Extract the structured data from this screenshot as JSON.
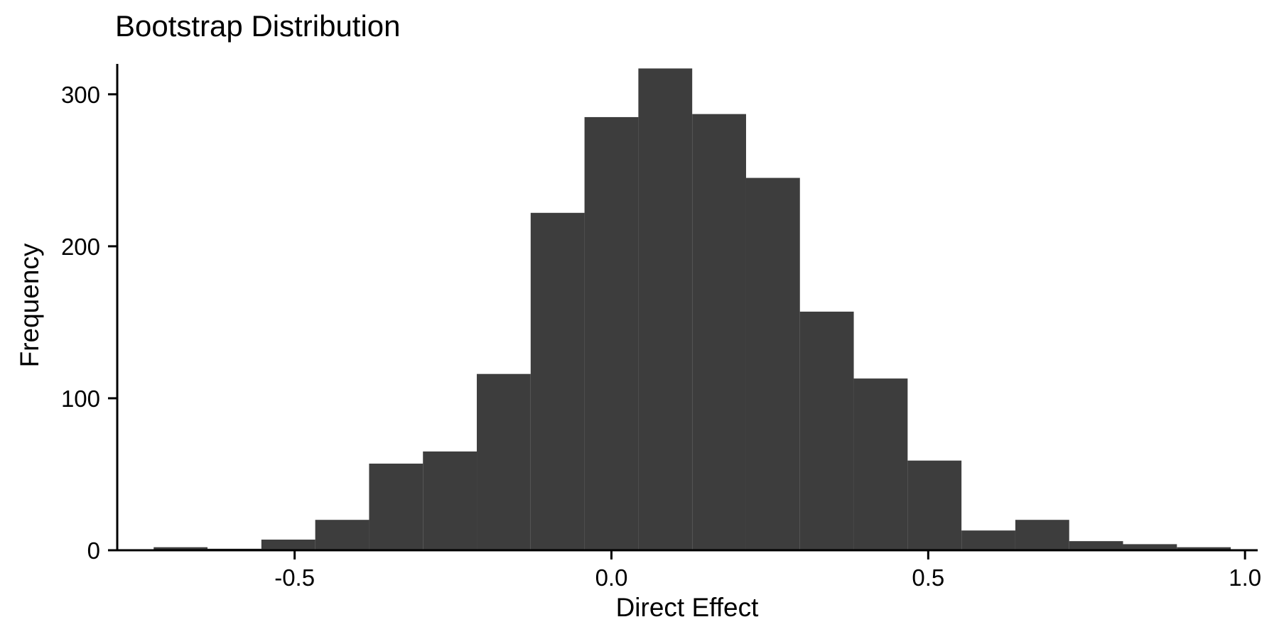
{
  "page": {
    "background": "#ffffff"
  },
  "chart_data": {
    "type": "bar",
    "subtype": "histogram",
    "title": "Bootstrap Distribution",
    "xlabel": "Direct Effect",
    "ylabel": "Frequency",
    "bar_color": "#3d3d3d",
    "axis_color": "#000000",
    "text_color": "#000000",
    "grid": false,
    "legend": false,
    "xlim": [
      -0.78,
      1.02
    ],
    "ylim": [
      0,
      320
    ],
    "x_ticks": [
      -0.5,
      0.0,
      0.5,
      1.0
    ],
    "x_tick_labels": [
      "-0.5",
      "0.0",
      "0.5",
      "1.0"
    ],
    "y_ticks": [
      0,
      100,
      200,
      300
    ],
    "y_tick_labels": [
      "0",
      "100",
      "200",
      "300"
    ],
    "bin_width": 0.085,
    "bins": [
      {
        "start": -0.7225,
        "count": 2
      },
      {
        "start": -0.6375,
        "count": 1
      },
      {
        "start": -0.5525,
        "count": 7
      },
      {
        "start": -0.4675,
        "count": 20
      },
      {
        "start": -0.3825,
        "count": 57
      },
      {
        "start": -0.2975,
        "count": 65
      },
      {
        "start": -0.2125,
        "count": 116
      },
      {
        "start": -0.1275,
        "count": 222
      },
      {
        "start": -0.0425,
        "count": 285
      },
      {
        "start": 0.0425,
        "count": 317
      },
      {
        "start": 0.1275,
        "count": 287
      },
      {
        "start": 0.2125,
        "count": 245
      },
      {
        "start": 0.2975,
        "count": 157
      },
      {
        "start": 0.3825,
        "count": 113
      },
      {
        "start": 0.4675,
        "count": 59
      },
      {
        "start": 0.5525,
        "count": 13
      },
      {
        "start": 0.6375,
        "count": 20
      },
      {
        "start": 0.7225,
        "count": 6
      },
      {
        "start": 0.8075,
        "count": 4
      },
      {
        "start": 0.8925,
        "count": 2
      }
    ]
  }
}
